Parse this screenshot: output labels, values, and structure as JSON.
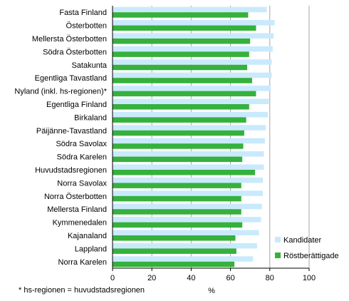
{
  "chart_data": {
    "type": "bar",
    "orientation": "horizontal",
    "categories": [
      "Fasta Finland",
      "Österbotten",
      "Mellersta Österbotten",
      "Södra Österbotten",
      "Satakunta",
      "Egentliga Tavastland",
      "Nyland (inkl. hs-regionen)*",
      "Egentliga Finland",
      "Birkaland",
      "Päijänne-Tavastland",
      "Södra Savolax",
      "Södra Karelen",
      "Huvudstadsregionen",
      "Norra Savolax",
      "Norra Österbotten",
      "Mellersta Finland",
      "Kymmenedalen",
      "Kajanaland",
      "Lappland",
      "Norra Karelen"
    ],
    "series": [
      {
        "name": "Kandidater",
        "color": "#c9eafc",
        "values": [
          78.5,
          82.5,
          82,
          81.5,
          81,
          81,
          80.5,
          79.5,
          79,
          78,
          77.5,
          77,
          77,
          76.5,
          76.5,
          76,
          75.5,
          74.5,
          73.5,
          71.5
        ]
      },
      {
        "name": "Röstberättigade",
        "color": "#35b13c",
        "values": [
          69,
          73,
          70,
          69.5,
          68.5,
          71,
          73,
          69.5,
          68,
          67,
          66.5,
          66,
          72.5,
          65.5,
          65.5,
          65.5,
          66,
          62.5,
          63,
          62
        ]
      }
    ],
    "x_axis": {
      "min": 0,
      "max": 100,
      "ticks": [
        "0",
        "20",
        "40",
        "60",
        "80",
        "100"
      ],
      "label": "%"
    },
    "grid": "vertical",
    "legend_position": "bottom-right",
    "footnote": "* hs-regionen = huvudstadsregionen"
  }
}
